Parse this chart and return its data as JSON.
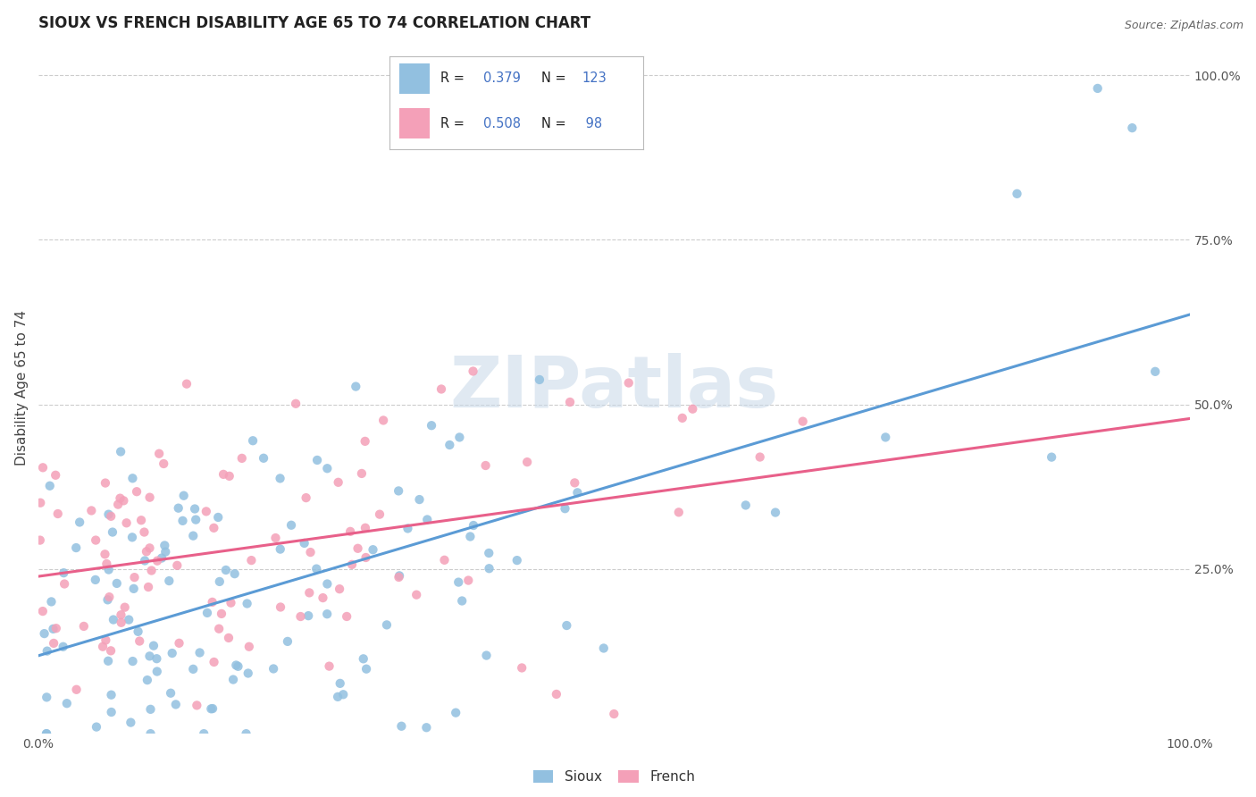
{
  "title": "SIOUX VS FRENCH DISABILITY AGE 65 TO 74 CORRELATION CHART",
  "source": "Source: ZipAtlas.com",
  "ylabel": "Disability Age 65 to 74",
  "xlim": [
    0.0,
    1.0
  ],
  "ylim": [
    0.0,
    1.05
  ],
  "sioux_color": "#92c0e0",
  "french_color": "#f4a0b8",
  "sioux_line_color": "#5b9bd5",
  "french_line_color": "#e8608a",
  "sioux_R": 0.379,
  "sioux_N": 123,
  "french_R": 0.508,
  "french_N": 98,
  "legend_labels": [
    "Sioux",
    "French"
  ],
  "watermark": "ZIPatlas",
  "blue_text": "#4472c4",
  "background_color": "#ffffff"
}
